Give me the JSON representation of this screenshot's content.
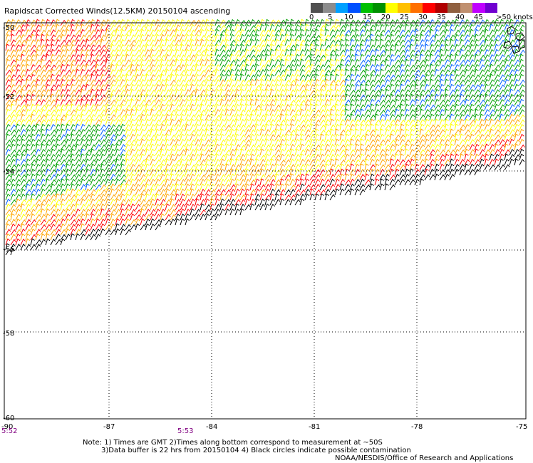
{
  "title": "Rapidscat Corrected Winds(12.5KM) 20150104 ascending",
  "legend": {
    "unit": ">50 knots",
    "labels": [
      "0",
      "5",
      "10",
      "15",
      "20",
      "25",
      "30",
      "35",
      "40",
      "45"
    ],
    "colors": [
      "#505050",
      "#8c8c8c",
      "#00a0ff",
      "#0050ff",
      "#00c000",
      "#009000",
      "#ffff00",
      "#ffc000",
      "#ff7000",
      "#ff0000",
      "#b00000",
      "#906040",
      "#c09070",
      "#c000ff",
      "#7000d0"
    ]
  },
  "lat_labels": [
    "-50",
    "-52",
    "-54",
    "-56",
    "-58",
    "-60"
  ],
  "lon_labels": [
    "-90",
    "-87",
    "-84",
    "-81",
    "-78",
    "-75"
  ],
  "times": [
    "5:52",
    "5:53"
  ],
  "notes": {
    "line1": "Note: 1) Times are GMT 2)Times along bottom correspond to measurement at ~50S",
    "line2": "3)Data buffer is 22 hrs from 20150104 4) Black circles indicate possible contamination",
    "line3": "NOAA/NESDIS/Office of Research and Applications"
  },
  "map": {
    "lat_range": [
      -60,
      -50
    ],
    "lon_range": [
      -90,
      -75
    ],
    "grid": true,
    "grid_style": "dotted",
    "wind_colors": {
      "calm": "#000000",
      "light": "#00a000",
      "moderate": "#ffff00",
      "fresh": "#ffa500",
      "strong": "#ff0000",
      "blue": "#0060ff"
    }
  }
}
